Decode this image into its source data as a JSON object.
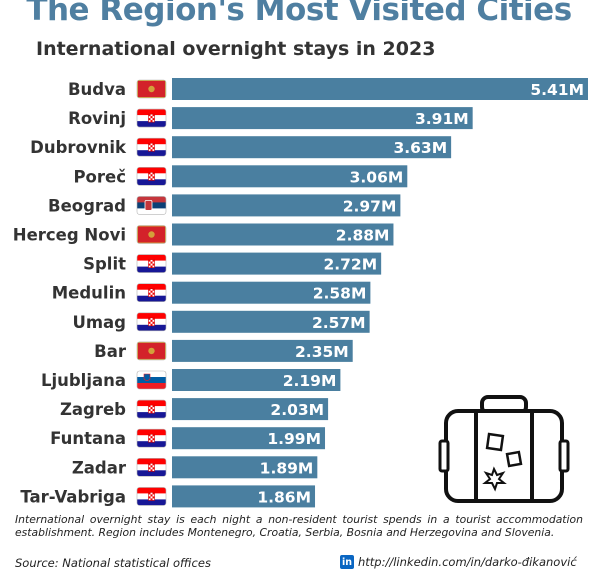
{
  "title": "The Region's Most Visited Cities",
  "subtitle": "International overnight stays in 2023",
  "footnote": "International overnight stay is each night a non-resident tourist spends in a tourist accommodation establishment. Region includes Montenegro, Croatia, Serbia, Bosnia and Herzegovina and Slovenia.",
  "source": "Source: National statistical offices",
  "credit": "http://linkedin.com/in/darko-đikanović",
  "icons": {
    "credit": "linkedin-icon",
    "illustration": "suitcase-icon"
  },
  "colors": {
    "bar": "#4a7fa0",
    "title": "#4f7fa1",
    "montenegro_flag": "#d3222a",
    "croatia_flag": [
      "#ff0000",
      "#ffffff",
      "#171796"
    ],
    "serbia_flag": [
      "#c6363c",
      "#0c4076",
      "#ffffff"
    ],
    "slovenia_flag": [
      "#ffffff",
      "#005da4",
      "#ed1c24"
    ]
  },
  "chart_data": {
    "type": "bar",
    "orientation": "horizontal",
    "title": "The Region's Most Visited Cities",
    "subtitle": "International overnight stays in 2023",
    "categories": [
      "Budva",
      "Rovinj",
      "Dubrovnik",
      "Poreč",
      "Beograd",
      "Herceg Novi",
      "Split",
      "Medulin",
      "Umag",
      "Bar",
      "Ljubljana",
      "Zagreb",
      "Funtana",
      "Zadar",
      "Tar-Vabriga"
    ],
    "values": [
      5.41,
      3.91,
      3.63,
      3.06,
      2.97,
      2.88,
      2.72,
      2.58,
      2.57,
      2.35,
      2.19,
      2.03,
      1.99,
      1.89,
      1.86
    ],
    "value_labels": [
      "5.41M",
      "3.91M",
      "3.63M",
      "3.06M",
      "2.97M",
      "2.88M",
      "2.72M",
      "2.58M",
      "2.57M",
      "2.35M",
      "2.19M",
      "2.03M",
      "1.99M",
      "1.89M",
      "1.86M"
    ],
    "countries": [
      "montenegro",
      "croatia",
      "croatia",
      "croatia",
      "serbia",
      "montenegro",
      "croatia",
      "croatia",
      "croatia",
      "montenegro",
      "slovenia",
      "croatia",
      "croatia",
      "croatia",
      "croatia"
    ],
    "xlabel": "",
    "ylabel": "",
    "xlim": [
      0,
      5.41
    ],
    "grid": false,
    "legend": "none"
  }
}
